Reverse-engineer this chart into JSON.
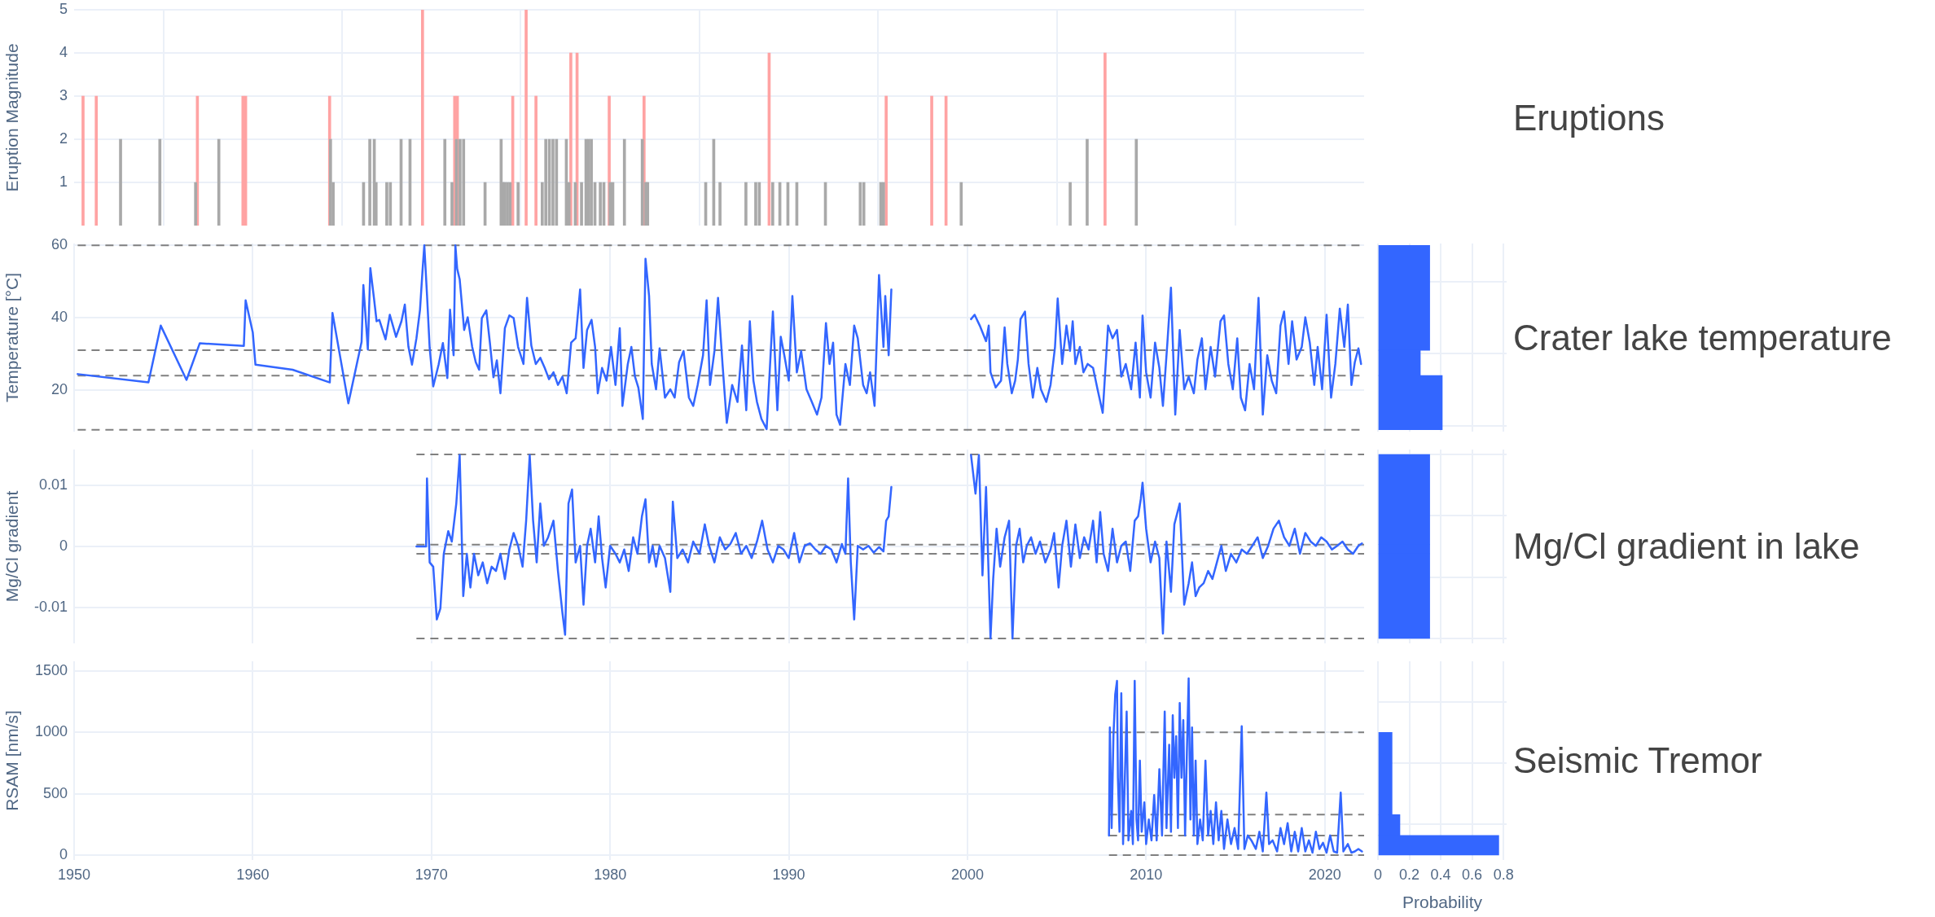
{
  "chart_data": [
    {
      "type": "bar",
      "ylabel": "Eruption Magnitude",
      "xlim": [
        1950,
        2022.2
      ],
      "xticks": [
        1950,
        1960,
        1970,
        1980,
        1990,
        2000,
        2010,
        2020
      ],
      "ylim": [
        0,
        5
      ],
      "yticks": [
        1,
        2,
        3,
        4,
        5
      ],
      "tick_labels": "y",
      "grid": true,
      "annotations": [
        "Eruptions"
      ],
      "series": [
        {
          "x": [
            1950.5,
            1951.24,
            1956.9,
            1959.45,
            1959.6,
            1964.3,
            1969.5,
            1971.3,
            1971.45,
            1974.55,
            1975.3,
            1975.85,
            1977.8,
            1978.15,
            1979.95,
            1981.9,
            1988.9,
            1995.45,
            1998.0,
            1998.8,
            2007.7
          ],
          "values": [
            3,
            3,
            3,
            3,
            3,
            3,
            5,
            3,
            3,
            3,
            5,
            3,
            4,
            4,
            3,
            3,
            4,
            3,
            3,
            3,
            4
          ],
          "color": "#ffa3a3"
        },
        {
          "x": [
            1952.6,
            1954.8,
            1956.8,
            1958.1,
            1964.35,
            1964.5,
            1966.2,
            1966.55,
            1966.8,
            1966.9,
            1967.5,
            1967.7,
            1968.3,
            1968.8,
            1970.75,
            1971.15,
            1971.4,
            1971.6,
            1971.8,
            1973.0,
            1973.9,
            1974.0,
            1974.1,
            1974.25,
            1974.4,
            1974.85,
            1976.2,
            1976.4,
            1976.6,
            1976.8,
            1977.0,
            1977.55,
            1977.7,
            1978.05,
            1978.4,
            1978.65,
            1978.8,
            1978.95,
            1979.15,
            1979.45,
            1979.65,
            1980.0,
            1980.15,
            1980.8,
            1981.8,
            1982.0,
            1982.1,
            1985.35,
            1985.8,
            1986.15,
            1987.6,
            1988.15,
            1988.35,
            1989.1,
            1989.5,
            1989.95,
            1990.45,
            1992.05,
            1994.0,
            1994.2,
            1995.15,
            1995.3,
            1999.65,
            2005.75,
            2006.7,
            2009.45
          ],
          "values": [
            2,
            2,
            1,
            2,
            2,
            1,
            1,
            2,
            2,
            1,
            1,
            1,
            2,
            2,
            2,
            1,
            2,
            2,
            2,
            1,
            2,
            1,
            1,
            1,
            1,
            1,
            1,
            2,
            2,
            2,
            2,
            2,
            1,
            1,
            1,
            2,
            2,
            2,
            1,
            1,
            1,
            1,
            1,
            2,
            2,
            1,
            1,
            1,
            2,
            1,
            1,
            1,
            1,
            1,
            1,
            1,
            1,
            1,
            1,
            1,
            1,
            1,
            1,
            1,
            2,
            2
          ],
          "color": "#a9a9a9"
        }
      ]
    },
    {
      "type": "line",
      "ylabel": "Temperature [°C]",
      "xlim": [
        1950,
        2022.2
      ],
      "xticks": [
        1950,
        1960,
        1970,
        1980,
        1990,
        2000,
        2010,
        2020
      ],
      "ylim": [
        8.5,
        60.5
      ],
      "yticks": [
        20,
        40,
        60
      ],
      "tick_labels": "y",
      "grid": true,
      "annotations": [
        "Crater lake temperature"
      ],
      "ref_lines": [
        {
          "axis": "y",
          "value": 60,
          "color": "#808080",
          "line_style": "dashed"
        },
        {
          "axis": "y",
          "value": 31,
          "color": "#808080",
          "line_style": "dashed"
        },
        {
          "axis": "y",
          "value": 24,
          "color": "#808080",
          "line_style": "dashed"
        },
        {
          "axis": "y",
          "value": 9,
          "color": "#808080",
          "line_style": "dashed"
        }
      ],
      "series": [
        {
          "color": "#3366ff",
          "x": [
            1950.2,
            1954.16,
            1954.85,
            1956.29,
            1957.03,
            1959.5,
            1959.6,
            1960.0,
            1960.15,
            1962.23,
            1964.31,
            1964.46,
            1965.35,
            1966.09,
            1966.19,
            1966.44,
            1966.58,
            1966.78,
            1966.93,
            1967.08,
            1967.43,
            1967.67,
            1968.02,
            1968.32,
            1968.51,
            1968.71,
            1968.91,
            1969.16,
            1969.36,
            1969.5,
            1969.6,
            1969.75,
            1969.9,
            1970.1,
            1970.4,
            1970.64,
            1970.89,
            1971.04,
            1971.24,
            1971.34,
            1971.44,
            1971.58,
            1971.83,
            1972.03,
            1972.28,
            1972.48,
            1972.67,
            1972.82,
            1973.07,
            1973.27,
            1973.47,
            1973.66,
            1973.86,
            1974.11,
            1974.36,
            1974.6,
            1974.85,
            1975.15,
            1975.35,
            1975.59,
            1975.84,
            1976.09,
            1976.34,
            1976.58,
            1976.83,
            1977.08,
            1977.33,
            1977.57,
            1977.82,
            1978.07,
            1978.32,
            1978.51,
            1978.71,
            1978.96,
            1979.16,
            1979.31,
            1979.55,
            1979.8,
            1980.05,
            1980.3,
            1980.54,
            1980.69,
            1980.99,
            1981.19,
            1981.39,
            1981.58,
            1981.83,
            1981.98,
            1982.18,
            1982.33,
            1982.57,
            1982.77,
            1983.07,
            1983.37,
            1983.61,
            1983.86,
            1984.11,
            1984.41,
            1984.65,
            1984.9,
            1985.2,
            1985.4,
            1985.59,
            1985.84,
            1986.04,
            1986.29,
            1986.53,
            1986.83,
            1987.13,
            1987.38,
            1987.62,
            1987.82,
            1988.02,
            1988.22,
            1988.47,
            1988.76,
            1989.11,
            1989.36,
            1989.55,
            1989.75,
            1990.0,
            1990.2,
            1990.45,
            1990.69,
            1990.99,
            1991.29,
            1991.58,
            1991.83,
            1992.08,
            1992.28,
            1992.48,
            1992.67,
            1992.87,
            1993.17,
            1993.42,
            1993.66,
            1993.86,
            1994.16,
            1994.36,
            1994.55,
            1994.8,
            1995.05,
            1995.3,
            1995.4,
            1995.59,
            1995.74,
            1998.0,
            2000.2,
            2000.4,
            2000.69,
            2001.04,
            2001.19,
            2001.29,
            2001.58,
            2001.88,
            2002.08,
            2002.23,
            2002.48,
            2002.67,
            2002.82,
            2002.97,
            2003.22,
            2003.42,
            2003.66,
            2003.91,
            2004.11,
            2004.41,
            2004.65,
            2004.9,
            2005.05,
            2005.3,
            2005.54,
            2005.74,
            2005.89,
            2006.04,
            2006.29,
            2006.49,
            2006.73,
            2007.03,
            2007.28,
            2007.57,
            2007.87,
            2008.12,
            2008.37,
            2008.61,
            2008.86,
            2009.16,
            2009.41,
            2009.65,
            2009.8,
            2010.0,
            2010.25,
            2010.5,
            2010.74,
            2010.94,
            2011.19,
            2011.39,
            2011.63,
            2011.88,
            2012.13,
            2012.38,
            2012.67,
            2012.87,
            2013.12,
            2013.32,
            2013.61,
            2013.86,
            2014.16,
            2014.36,
            2014.6,
            2014.85,
            2015.1,
            2015.3,
            2015.54,
            2015.79,
            2016.04,
            2016.29,
            2016.53,
            2016.78,
            2017.03,
            2017.28,
            2017.52,
            2017.72,
            2017.97,
            2018.17,
            2018.42,
            2018.71,
            2018.91,
            2019.16,
            2019.41,
            2019.6,
            2019.85,
            2020.1,
            2020.35,
            2020.59,
            2020.84,
            2021.09,
            2021.29,
            2021.49,
            2021.68,
            2021.88,
            2022.03
          ],
          "values": [
            24.4,
            22.1,
            37.8,
            22.8,
            32.9,
            32.2,
            44.8,
            35.9,
            27.0,
            25.6,
            22.1,
            41.3,
            16.3,
            33.3,
            49.0,
            31.2,
            53.7,
            45.5,
            39.0,
            39.4,
            34.0,
            40.8,
            34.7,
            39.0,
            43.6,
            32.0,
            27.0,
            34.3,
            42.2,
            53.0,
            60.0,
            46.4,
            31.7,
            21.0,
            27.0,
            33.0,
            23.3,
            42.2,
            29.6,
            60.0,
            53.5,
            50.6,
            36.6,
            40.1,
            31.9,
            27.7,
            25.6,
            39.9,
            42.0,
            33.1,
            23.5,
            28.2,
            19.1,
            37.1,
            40.6,
            39.9,
            31.9,
            27.2,
            45.5,
            32.3,
            27.2,
            28.9,
            26.1,
            23.0,
            24.9,
            21.4,
            23.7,
            19.1,
            33.1,
            34.3,
            47.8,
            26.1,
            36.6,
            39.4,
            31.9,
            19.1,
            26.1,
            22.6,
            31.9,
            21.4,
            37.1,
            15.6,
            27.2,
            31.9,
            23.7,
            20.7,
            12.0,
            56.3,
            46.0,
            27.2,
            20.2,
            31.5,
            17.9,
            20.2,
            17.9,
            27.7,
            30.8,
            17.9,
            15.6,
            21.4,
            29.6,
            44.8,
            21.4,
            30.8,
            45.5,
            27.2,
            10.9,
            21.4,
            16.7,
            32.3,
            14.4,
            39.0,
            22.6,
            16.7,
            12.0,
            9.2,
            41.7,
            14.4,
            34.7,
            29.6,
            22.6,
            46.0,
            24.9,
            30.8,
            20.2,
            16.7,
            13.2,
            17.9,
            38.5,
            27.2,
            33.1,
            13.2,
            10.4,
            27.2,
            21.4,
            37.8,
            34.3,
            21.4,
            19.1,
            24.9,
            15.6,
            51.8,
            31.9,
            46.0,
            29.6,
            47.8,
            null,
            39.6,
            40.8,
            37.8,
            33.5,
            37.8,
            24.9,
            20.7,
            22.6,
            37.3,
            27.2,
            19.1,
            22.6,
            28.4,
            39.6,
            41.7,
            27.2,
            17.9,
            26.1,
            20.2,
            16.7,
            21.4,
            31.9,
            45.3,
            27.2,
            37.8,
            30.8,
            39.0,
            27.2,
            31.9,
            24.9,
            27.2,
            26.1,
            20.2,
            13.7,
            37.8,
            34.3,
            36.6,
            23.7,
            27.2,
            20.2,
            33.1,
            17.9,
            40.6,
            24.9,
            17.9,
            33.1,
            26.1,
            15.6,
            33.1,
            48.3,
            13.2,
            36.6,
            20.2,
            23.7,
            19.1,
            28.4,
            34.3,
            20.2,
            31.9,
            23.7,
            39.0,
            40.6,
            27.2,
            20.2,
            34.3,
            17.9,
            14.4,
            27.2,
            20.2,
            45.5,
            13.2,
            29.6,
            22.6,
            19.1,
            37.8,
            41.7,
            27.2,
            39.0,
            28.4,
            31.9,
            40.1,
            33.1,
            21.4,
            31.9,
            20.2,
            40.8,
            17.9,
            27.2,
            42.5,
            31.9,
            43.6,
            21.4,
            27.7,
            31.5,
            27.2
          ]
        }
      ]
    },
    {
      "type": "line",
      "ylabel": "Mg/Cl gradient",
      "xlim": [
        1950,
        2022.2
      ],
      "xticks": [
        1950,
        1960,
        1970,
        1980,
        1990,
        2000,
        2010,
        2020
      ],
      "ylim": [
        -0.0158,
        0.0158
      ],
      "yticks": [
        -0.01,
        0,
        0.01
      ],
      "tick_labels": "y",
      "grid": true,
      "annotations": [
        "Mg/Cl gradient in lake"
      ],
      "ref_lines": [
        {
          "axis": "y",
          "value": 0.015,
          "color": "#808080",
          "line_style": "dashed"
        },
        {
          "axis": "y",
          "value": 0.0003,
          "color": "#808080",
          "line_style": "dashed"
        },
        {
          "axis": "y",
          "value": -0.0012,
          "color": "#808080",
          "line_style": "dashed"
        },
        {
          "axis": "y",
          "value": -0.015,
          "color": "#808080",
          "line_style": "dashed"
        }
      ],
      "series": [
        {
          "color": "#3366ff",
          "x": [
            1969.16,
            1969.7,
            1969.75,
            1969.9,
            1970.1,
            1970.3,
            1970.5,
            1970.69,
            1970.94,
            1971.14,
            1971.39,
            1971.58,
            1971.78,
            1971.98,
            1972.18,
            1972.38,
            1972.62,
            1972.87,
            1973.12,
            1973.37,
            1973.61,
            1973.86,
            1974.11,
            1974.36,
            1974.6,
            1974.85,
            1975.1,
            1975.3,
            1975.5,
            1975.69,
            1975.89,
            1976.09,
            1976.29,
            1976.53,
            1976.83,
            1977.08,
            1977.33,
            1977.48,
            1977.67,
            1977.87,
            1978.07,
            1978.32,
            1978.51,
            1978.71,
            1978.91,
            1979.16,
            1979.36,
            1979.55,
            1979.75,
            1980.0,
            1980.3,
            1980.54,
            1980.79,
            1981.04,
            1981.29,
            1981.53,
            1981.78,
            1981.98,
            1982.18,
            1982.38,
            1982.57,
            1982.77,
            1983.07,
            1983.37,
            1983.51,
            1983.76,
            1984.06,
            1984.36,
            1984.65,
            1985.0,
            1985.3,
            1985.54,
            1985.84,
            1986.14,
            1986.44,
            1986.73,
            1987.03,
            1987.33,
            1987.62,
            1987.92,
            1988.22,
            1988.51,
            1988.81,
            1989.11,
            1989.41,
            1989.7,
            1990.0,
            1990.3,
            1990.59,
            1990.89,
            1991.19,
            1991.49,
            1991.78,
            1992.08,
            1992.38,
            1992.67,
            1992.97,
            1993.17,
            1993.32,
            1993.47,
            1993.66,
            1993.86,
            1994.16,
            1994.46,
            1994.75,
            1995.05,
            1995.3,
            1995.45,
            1995.59,
            1995.74,
            1998.0,
            2000.2,
            2000.45,
            2000.64,
            2000.84,
            2001.04,
            2001.29,
            2001.44,
            2001.63,
            2001.83,
            2002.08,
            2002.33,
            2002.52,
            2002.72,
            2002.92,
            2003.12,
            2003.32,
            2003.56,
            2003.81,
            2004.06,
            2004.36,
            2004.65,
            2004.85,
            2005.1,
            2005.3,
            2005.54,
            2005.79,
            2006.04,
            2006.29,
            2006.53,
            2006.78,
            2007.03,
            2007.23,
            2007.43,
            2007.62,
            2007.87,
            2008.12,
            2008.37,
            2008.61,
            2008.86,
            2009.11,
            2009.36,
            2009.55,
            2009.7,
            2009.8,
            2010.0,
            2010.25,
            2010.5,
            2010.74,
            2010.94,
            2011.14,
            2011.39,
            2011.58,
            2011.88,
            2012.13,
            2012.38,
            2012.57,
            2012.77,
            2012.97,
            2013.22,
            2013.47,
            2013.71,
            2013.96,
            2014.21,
            2014.46,
            2014.75,
            2015.05,
            2015.35,
            2015.64,
            2015.94,
            2016.24,
            2016.53,
            2016.83,
            2017.13,
            2017.43,
            2017.72,
            2018.02,
            2018.32,
            2018.61,
            2018.91,
            2019.21,
            2019.5,
            2019.8,
            2020.1,
            2020.4,
            2020.69,
            2020.99,
            2021.29,
            2021.58,
            2021.88,
            2022.08
          ],
          "values": [
            0,
            0,
            0.0111,
            -0.0026,
            -0.0033,
            -0.0119,
            -0.0101,
            -0.0012,
            0.0025,
            0.0008,
            0.007,
            0.0149,
            -0.0081,
            -0.0012,
            -0.0067,
            -0.0012,
            -0.0047,
            -0.0026,
            -0.006,
            -0.0033,
            -0.004,
            -0.0012,
            -0.0053,
            -0.0005,
            0.0022,
            0.0001,
            -0.0033,
            0.0042,
            0.0149,
            0.0042,
            -0.0026,
            0.007,
            0.0001,
            0.0015,
            0.0042,
            -0.004,
            -0.0108,
            -0.0144,
            0.007,
            0.0093,
            -0.0026,
            0.0001,
            -0.0095,
            0.0001,
            0.0029,
            -0.0026,
            0.0049,
            -0.0019,
            -0.0067,
            0.0001,
            -0.0012,
            -0.0026,
            -0.0005,
            -0.004,
            0.0015,
            -0.0012,
            0.0049,
            0.0077,
            -0.0026,
            0.0001,
            -0.0033,
            0.0001,
            -0.0019,
            -0.0074,
            0.0073,
            -0.0019,
            -0.0005,
            -0.0026,
            0.0008,
            -0.0012,
            0.0036,
            0.0001,
            -0.0026,
            0.0015,
            -0.0005,
            0.0004,
            0.0022,
            -0.0012,
            0.0001,
            -0.0019,
            0.0008,
            0.0042,
            -0.0005,
            -0.0026,
            0.0001,
            -0.0005,
            -0.0019,
            0.0022,
            -0.0026,
            0.0001,
            0.0005,
            -0.0005,
            -0.0012,
            0.0001,
            -0.0005,
            -0.0026,
            0.0004,
            -0.0012,
            0.0111,
            -0.0026,
            -0.0119,
            0.0001,
            -0.0005,
            0.0001,
            -0.001,
            -0.0001,
            -0.0008,
            0.0042,
            0.0049,
            0.0097,
            null,
            0.0149,
            0.0086,
            0.0149,
            -0.0047,
            0.0097,
            -0.015,
            -0.0053,
            0.0029,
            -0.0033,
            0.0015,
            0.0042,
            -0.015,
            0.0001,
            0.0029,
            -0.0026,
            0.0001,
            0.0015,
            -0.0012,
            0.0008,
            -0.0026,
            -0.0005,
            0.0022,
            -0.0067,
            0.0001,
            0.0042,
            -0.0033,
            0.0036,
            -0.0019,
            0.0015,
            -0.0005,
            0.0042,
            -0.0026,
            0.0056,
            -0.0012,
            -0.004,
            0.0029,
            -0.0026,
            0.0001,
            0.0008,
            -0.004,
            0.0042,
            0.0049,
            0.0077,
            0.0104,
            0.0029,
            -0.0026,
            0.0008,
            -0.0019,
            -0.0142,
            0.0008,
            -0.0074,
            0.0036,
            0.007,
            -0.0095,
            -0.006,
            -0.0026,
            -0.0081,
            -0.0067,
            -0.006,
            -0.004,
            -0.0053,
            -0.0026,
            0.0001,
            -0.004,
            -0.0012,
            -0.0026,
            -0.0005,
            -0.0012,
            0.0001,
            0.0015,
            -0.0019,
            0.0001,
            0.0029,
            0.0042,
            0.0015,
            0.0001,
            0.0029,
            -0.0012,
            0.0022,
            0.0008,
            0.0001,
            0.0015,
            0.0008,
            -0.0005,
            0.0001,
            0.0008,
            -0.0005,
            -0.0012,
            0.0001,
            0.0005
          ]
        }
      ]
    },
    {
      "type": "line",
      "ylabel": "RSAM [nm/s]",
      "xlim": [
        1950,
        2022.2
      ],
      "xticks": [
        1950,
        1960,
        1970,
        1980,
        1990,
        2000,
        2010,
        2020
      ],
      "ylim": [
        -40,
        1580
      ],
      "yticks": [
        0,
        500,
        1000,
        1500
      ],
      "grid": true,
      "annotations": [
        "Seismic Tremor"
      ],
      "ref_lines": [
        {
          "axis": "y",
          "value": 1000,
          "color": "#808080",
          "line_style": "dashed"
        },
        {
          "axis": "y",
          "value": 330,
          "color": "#808080",
          "line_style": "dashed"
        },
        {
          "axis": "y",
          "value": 160,
          "color": "#808080",
          "line_style": "dashed"
        },
        {
          "axis": "y",
          "value": 0,
          "color": "#808080",
          "line_style": "dashed"
        }
      ],
      "series": [
        {
          "color": "#3366ff",
          "x": [
            2007.92,
            2007.97,
            2008.07,
            2008.17,
            2008.27,
            2008.37,
            2008.42,
            2008.51,
            2008.61,
            2008.71,
            2008.81,
            2008.91,
            2009.01,
            2009.16,
            2009.26,
            2009.36,
            2009.46,
            2009.55,
            2009.65,
            2009.75,
            2009.9,
            2010.0,
            2010.15,
            2010.3,
            2010.45,
            2010.59,
            2010.74,
            2010.89,
            2011.04,
            2011.14,
            2011.29,
            2011.39,
            2011.49,
            2011.58,
            2011.68,
            2011.78,
            2011.88,
            2011.98,
            2012.08,
            2012.18,
            2012.28,
            2012.38,
            2012.48,
            2012.57,
            2012.67,
            2012.77,
            2012.87,
            2013.02,
            2013.17,
            2013.32,
            2013.47,
            2013.61,
            2013.76,
            2013.91,
            2014.06,
            2014.21,
            2014.36,
            2014.55,
            2014.75,
            2014.95,
            2015.15,
            2015.35,
            2015.5,
            2015.69,
            2015.89,
            2016.14,
            2016.34,
            2016.53,
            2016.73,
            2016.88,
            2017.08,
            2017.33,
            2017.52,
            2017.72,
            2017.92,
            2018.12,
            2018.32,
            2018.51,
            2018.71,
            2018.91,
            2019.11,
            2019.31,
            2019.5,
            2019.7,
            2019.9,
            2020.1,
            2020.3,
            2020.5,
            2020.69,
            2020.89,
            2021.04,
            2021.29,
            2021.49,
            2021.68,
            2021.88,
            2022.08
          ],
          "values": [
            160,
            1040,
            220,
            970,
            1310,
            1420,
            630,
            190,
            1320,
            90,
            630,
            1170,
            120,
            360,
            90,
            1420,
            290,
            120,
            770,
            190,
            430,
            90,
            290,
            120,
            490,
            120,
            700,
            160,
            1170,
            220,
            900,
            190,
            1140,
            630,
            970,
            220,
            1240,
            630,
            1100,
            160,
            830,
            1440,
            290,
            1040,
            160,
            770,
            90,
            290,
            120,
            770,
            160,
            360,
            90,
            430,
            120,
            360,
            50,
            290,
            90,
            220,
            50,
            1050,
            50,
            160,
            120,
            50,
            190,
            30,
            510,
            90,
            120,
            30,
            220,
            90,
            260,
            30,
            190,
            30,
            220,
            30,
            120,
            20,
            190,
            50,
            100,
            20,
            160,
            30,
            20,
            510,
            30,
            90,
            20,
            30,
            50,
            30
          ]
        }
      ]
    },
    {
      "type": "histogram",
      "orientation": "horizontal",
      "bins": [
        9,
        24,
        31,
        60
      ],
      "values": [
        0.41,
        0.27,
        0.33
      ],
      "color": "#3366ff",
      "xlim": [
        0,
        0.82
      ],
      "xticks": [
        0,
        0.2,
        0.4,
        0.6,
        0.8
      ],
      "ylim": [
        8.5,
        60.5
      ],
      "yticks": [
        20,
        40,
        60
      ],
      "tick_labels": false,
      "grid": true
    },
    {
      "type": "histogram",
      "orientation": "horizontal",
      "bins": [
        -0.015,
        -0.0012,
        0.0003,
        0.015
      ],
      "values": [
        0.33,
        0.33,
        0.33
      ],
      "color": "#3366ff",
      "xlim": [
        0,
        0.82
      ],
      "xticks": [
        0,
        0.2,
        0.4,
        0.6,
        0.8
      ],
      "ylim": [
        -0.0158,
        0.0158
      ],
      "yticks": [
        -0.01,
        0,
        0.01
      ],
      "tick_labels": false,
      "grid": true
    },
    {
      "type": "histogram",
      "orientation": "horizontal",
      "bins": [
        0,
        160,
        330,
        1000
      ],
      "values": [
        0.77,
        0.14,
        0.09
      ],
      "color": "#3366ff",
      "xlabel": "Probability",
      "xlim": [
        0,
        0.82
      ],
      "xticks": [
        0,
        0.2,
        0.4,
        0.6,
        0.8
      ],
      "ylim": [
        -40,
        1580
      ],
      "yticks": [
        0,
        500,
        1000,
        1500
      ],
      "tick_labels": "x",
      "grid": true
    }
  ]
}
